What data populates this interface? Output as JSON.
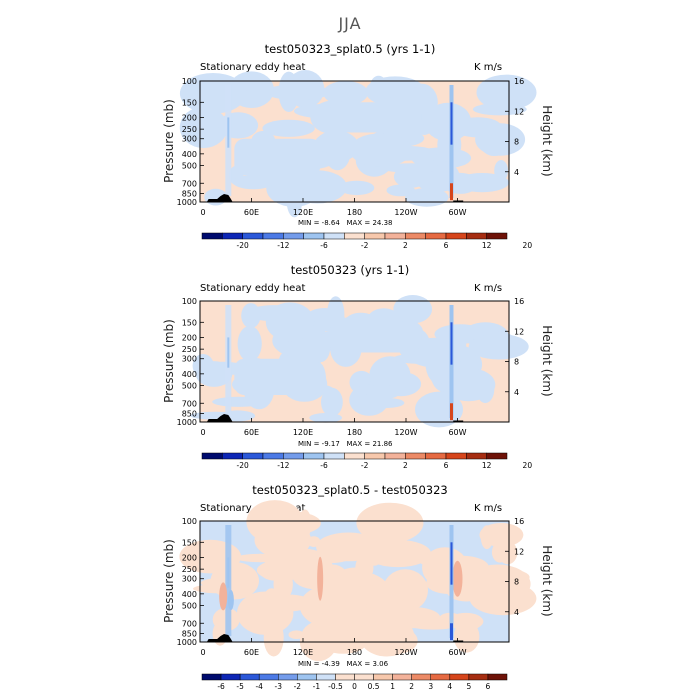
{
  "page_title": "JJA",
  "colors": {
    "light_blue": "#cfe1f7",
    "light_orange": "#fbe0cf",
    "mid_blue": "#9ec4f0",
    "deep_blue": "#2b58d9",
    "mid_orange": "#f3b29a",
    "deep_orange": "#d6451b",
    "terrain": "#000000"
  },
  "palette": [
    "#000b6e",
    "#0d26b5",
    "#2b58d9",
    "#4c7ae6",
    "#749ceb",
    "#9ec4f0",
    "#cfe1f7",
    "#fbe0cf",
    "#f7c8ac",
    "#f3b29a",
    "#ec8a66",
    "#e66a42",
    "#d6451b",
    "#a62d11",
    "#6e1208"
  ],
  "chart_data": [
    {
      "type": "heatmap",
      "title": "test050323_splat0.5 (yrs 1-1)",
      "subtitle": "Stationary eddy heat",
      "units": "K m/s",
      "ylabel": "Pressure (mb)",
      "ylabel_right": "Height (km)",
      "x_ticks": [
        "0",
        "60E",
        "120E",
        "180",
        "120W",
        "60W"
      ],
      "y_ticks": [
        "100",
        "150",
        "200",
        "250",
        "300",
        "400",
        "500",
        "700",
        "850",
        "1000"
      ],
      "y_right_ticks": [
        "4",
        "8",
        "12",
        "16"
      ],
      "min_label": "MIN =",
      "min_value": "-8.64",
      "max_label": "MAX =",
      "max_value": "24.38",
      "colorbar_labels": [
        "-20",
        "-12",
        "-6",
        "-2",
        "2",
        "6",
        "12",
        "20"
      ]
    },
    {
      "type": "heatmap",
      "title": "test050323 (yrs 1-1)",
      "subtitle": "Stationary eddy heat",
      "units": "K m/s",
      "ylabel": "Pressure (mb)",
      "ylabel_right": "Height (km)",
      "x_ticks": [
        "0",
        "60E",
        "120E",
        "180",
        "120W",
        "60W"
      ],
      "y_ticks": [
        "100",
        "150",
        "200",
        "250",
        "300",
        "400",
        "500",
        "700",
        "850",
        "1000"
      ],
      "y_right_ticks": [
        "4",
        "8",
        "12",
        "16"
      ],
      "min_label": "MIN =",
      "min_value": "-9.17",
      "max_label": "MAX =",
      "max_value": "21.86",
      "colorbar_labels": [
        "-20",
        "-12",
        "-6",
        "-2",
        "2",
        "6",
        "12",
        "20"
      ]
    },
    {
      "type": "heatmap",
      "title": "test050323_splat0.5 - test050323",
      "subtitle": "Stationary eddy heat",
      "units": "K m/s",
      "ylabel": "Pressure (mb)",
      "ylabel_right": "Height (km)",
      "x_ticks": [
        "0",
        "60E",
        "120E",
        "180",
        "120W",
        "60W"
      ],
      "y_ticks": [
        "100",
        "150",
        "200",
        "250",
        "300",
        "400",
        "500",
        "700",
        "850",
        "1000"
      ],
      "y_right_ticks": [
        "4",
        "8",
        "12",
        "16"
      ],
      "min_label": "MIN =",
      "min_value": "-4.39",
      "max_label": "MAX =",
      "max_value": "3.06",
      "colorbar_labels": [
        "-6",
        "-5",
        "-4",
        "-3",
        "-2",
        "-1",
        "-0.5",
        "0",
        "0.5",
        "1",
        "2",
        "3",
        "4",
        "5",
        "6"
      ]
    }
  ]
}
